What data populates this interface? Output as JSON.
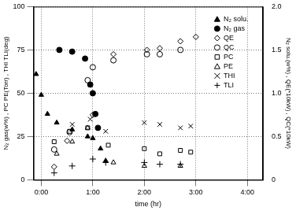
{
  "chart_data": {
    "type": "scatter",
    "x_label": "time (hr)",
    "y_label": "N₂ gas(w%) , PC PE(Torr) , THI TLI(deg)",
    "y2_label": "N₂ solu.(w%) , QE(*10kW) , QC(*10kW)",
    "xlim": [
      -0.15,
      4.3
    ],
    "xticks": [
      {
        "value": 0,
        "label": "0:00"
      },
      {
        "value": 1,
        "label": "1:00"
      },
      {
        "value": 2,
        "label": "2:00"
      },
      {
        "value": 3,
        "label": "3:00"
      },
      {
        "value": 4,
        "label": "4:00"
      }
    ],
    "ylim": [
      0,
      100
    ],
    "yticks": [
      0,
      25,
      50,
      75,
      100
    ],
    "y2lim": [
      0,
      2
    ],
    "y2ticks": [
      0,
      0.5,
      {
        "value": 1,
        "label": "1.0"
      },
      1.5,
      {
        "value": 2,
        "label": "2.0"
      }
    ],
    "grid": true,
    "legend": "upper right",
    "series": [
      {
        "name": "N₂ solu.",
        "color": "#000000",
        "marker": "filled_triangle",
        "axis": "y2",
        "x": [
          -0.1,
          0.0,
          0.12,
          0.3,
          0.6,
          0.9,
          1.0,
          1.15,
          1.25
        ],
        "values": [
          1.22,
          0.98,
          0.76,
          0.66,
          0.58,
          0.5,
          0.48,
          0.36,
          0.22
        ]
      },
      {
        "name": "N₂ gas",
        "color": "#000000",
        "marker": "filled_circle",
        "axis": "y",
        "x": [
          0.35,
          0.6,
          0.85,
          0.95,
          1.0,
          1.05,
          1.1
        ],
        "values": [
          75,
          74,
          70,
          55,
          50,
          38,
          30
        ]
      },
      {
        "name": "QE",
        "color": "#000000",
        "marker": "diamond",
        "axis": "y2",
        "x": [
          0.25,
          0.5,
          1.0,
          1.4,
          2.05,
          2.3,
          2.7,
          3.0
        ],
        "values": [
          0.15,
          0.45,
          0.75,
          1.45,
          1.5,
          1.52,
          1.6,
          1.65
        ]
      },
      {
        "name": "QC",
        "color": "#000000",
        "marker": "circle",
        "axis": "y2",
        "x": [
          0.25,
          0.55,
          0.9,
          1.0,
          1.4,
          2.05,
          2.3,
          2.7
        ],
        "values": [
          0.35,
          0.55,
          1.15,
          1.3,
          1.38,
          1.45,
          1.45,
          1.5
        ]
      },
      {
        "name": "PC",
        "color": "#000000",
        "marker": "square",
        "axis": "y",
        "x": [
          0.25,
          0.55,
          0.9,
          1.3,
          2.0,
          2.3,
          2.7,
          2.9
        ],
        "values": [
          22,
          28,
          30,
          20,
          18,
          15,
          17,
          16
        ]
      },
      {
        "name": "PE",
        "color": "#000000",
        "marker": "triangle",
        "axis": "y",
        "x": [
          0.3,
          0.6,
          0.9,
          1.4,
          2.0,
          2.7
        ],
        "values": [
          15,
          22,
          30,
          10,
          8,
          8
        ]
      },
      {
        "name": "THI",
        "color": "#000000",
        "marker": "x",
        "axis": "y",
        "x": [
          0.6,
          0.95,
          1.25,
          2.0,
          2.3,
          2.7,
          2.9
        ],
        "values": [
          32,
          35,
          28,
          33,
          32,
          30,
          31
        ]
      },
      {
        "name": "TLI",
        "color": "#000000",
        "marker": "plus",
        "axis": "y",
        "x": [
          0.25,
          0.6,
          1.0,
          1.25,
          2.0,
          2.3,
          2.7
        ],
        "values": [
          4,
          8,
          12,
          10,
          10,
          9,
          9
        ]
      }
    ]
  }
}
